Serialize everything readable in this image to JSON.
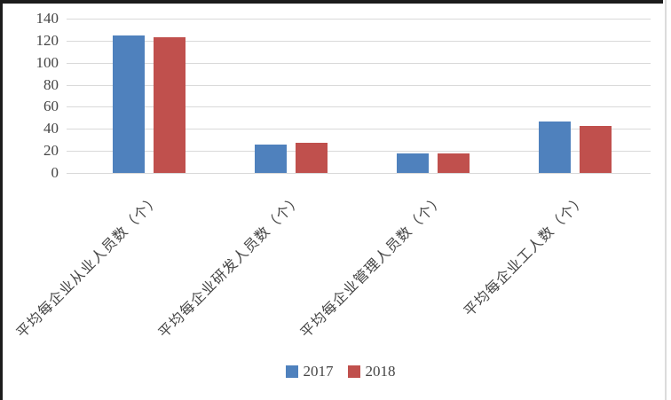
{
  "chart_data": {
    "type": "bar",
    "title": "",
    "xlabel": "",
    "ylabel": "",
    "categories": [
      "平均每企业从业人员数（个）",
      "平均每企业研发人员数（个）",
      "平均每企业管理人员数（个）",
      "平均每企业工人数（个）"
    ],
    "series": [
      {
        "name": "2017",
        "color": "#4F81BD",
        "values": [
          125,
          26,
          18,
          47
        ]
      },
      {
        "name": "2018",
        "color": "#C0504D",
        "values": [
          123,
          27,
          18,
          43
        ]
      }
    ],
    "ylim": [
      0,
      140
    ],
    "yticks": [
      0,
      20,
      40,
      60,
      80,
      100,
      120,
      140
    ],
    "grid": true,
    "legend_position": "bottom"
  },
  "colors": {
    "bar_2017": "#4F81BD",
    "bar_2018": "#C0504D",
    "gridline": "#D9D9D9",
    "axis_text": "#454545",
    "frame": "#1C1C1C",
    "background": "#FFFFFF"
  }
}
